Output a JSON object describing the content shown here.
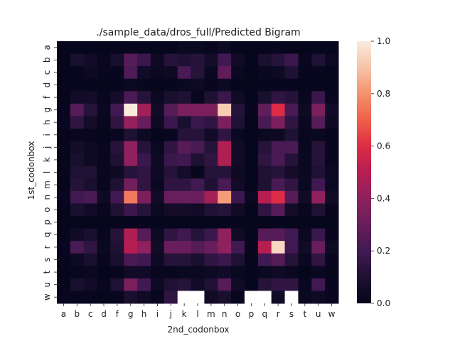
{
  "chart_data": {
    "type": "heatmap",
    "title": "./sample_data/dros_full/Predicted Bigram",
    "xlabel": "2nd_codonbox",
    "ylabel": "1st_codonbox",
    "x_categories": [
      "a",
      "b",
      "c",
      "d",
      "f",
      "g",
      "h",
      "i",
      "j",
      "k",
      "l",
      "m",
      "n",
      "o",
      "p",
      "q",
      "r",
      "s",
      "t",
      "u",
      "w"
    ],
    "y_categories": [
      "a",
      "b",
      "c",
      "d",
      "f",
      "g",
      "h",
      "i",
      "j",
      "k",
      "l",
      "m",
      "n",
      "o",
      "p",
      "q",
      "r",
      "s",
      "t",
      "u",
      "w"
    ],
    "colorbar": {
      "min": 0.0,
      "max": 1.0,
      "ticks": [
        "0.0",
        "0.2",
        "0.4",
        "0.6",
        "0.8",
        "1.0"
      ],
      "colormap": "rocket"
    },
    "missing_color": "#ffffff",
    "values": [
      [
        0.01,
        0.01,
        0.01,
        0.01,
        0.01,
        0.02,
        0.02,
        0.01,
        0.01,
        0.03,
        0.03,
        0.02,
        0.04,
        0.01,
        0.01,
        0.01,
        0.02,
        0.01,
        0.01,
        0.01,
        0.01
      ],
      [
        0.01,
        0.08,
        0.05,
        0.02,
        0.07,
        0.25,
        0.18,
        0.04,
        0.12,
        0.1,
        0.12,
        0.06,
        0.2,
        0.05,
        0.01,
        0.08,
        0.12,
        0.18,
        0.02,
        0.1,
        0.03
      ],
      [
        0.01,
        0.02,
        0.04,
        0.02,
        0.02,
        0.23,
        0.05,
        0.03,
        0.04,
        0.22,
        0.12,
        0.03,
        0.28,
        0.03,
        0.01,
        0.03,
        0.04,
        0.1,
        0.02,
        0.02,
        0.01
      ],
      [
        0.01,
        0.02,
        0.02,
        0.01,
        0.02,
        0.03,
        0.02,
        0.01,
        0.02,
        0.03,
        0.04,
        0.02,
        0.04,
        0.01,
        0.01,
        0.02,
        0.02,
        0.02,
        0.01,
        0.02,
        0.01
      ],
      [
        0.01,
        0.05,
        0.06,
        0.02,
        0.06,
        0.22,
        0.12,
        0.03,
        0.08,
        0.1,
        0.02,
        0.1,
        0.18,
        0.05,
        0.01,
        0.08,
        0.15,
        0.12,
        0.02,
        0.18,
        0.02
      ],
      [
        0.02,
        0.25,
        0.12,
        0.03,
        0.2,
        1.0,
        0.45,
        0.05,
        0.25,
        0.35,
        0.35,
        0.35,
        0.92,
        0.12,
        0.02,
        0.28,
        0.6,
        0.22,
        0.04,
        0.35,
        0.05
      ],
      [
        0.02,
        0.15,
        0.06,
        0.02,
        0.15,
        0.42,
        0.3,
        0.04,
        0.18,
        0.08,
        0.18,
        0.15,
        0.35,
        0.1,
        0.01,
        0.22,
        0.35,
        0.15,
        0.03,
        0.25,
        0.04
      ],
      [
        0.01,
        0.02,
        0.02,
        0.01,
        0.02,
        0.1,
        0.04,
        0.01,
        0.02,
        0.12,
        0.12,
        0.05,
        0.15,
        0.03,
        0.01,
        0.03,
        0.04,
        0.1,
        0.02,
        0.03,
        0.01
      ],
      [
        0.01,
        0.06,
        0.04,
        0.02,
        0.12,
        0.4,
        0.12,
        0.03,
        0.15,
        0.25,
        0.22,
        0.12,
        0.48,
        0.05,
        0.01,
        0.12,
        0.22,
        0.22,
        0.02,
        0.12,
        0.02
      ],
      [
        0.01,
        0.08,
        0.04,
        0.02,
        0.1,
        0.4,
        0.18,
        0.04,
        0.18,
        0.2,
        0.1,
        0.15,
        0.48,
        0.05,
        0.01,
        0.15,
        0.22,
        0.12,
        0.03,
        0.12,
        0.02
      ],
      [
        0.01,
        0.1,
        0.1,
        0.02,
        0.04,
        0.12,
        0.15,
        0.04,
        0.12,
        0.06,
        0.02,
        0.12,
        0.12,
        0.04,
        0.01,
        0.1,
        0.12,
        0.06,
        0.03,
        0.1,
        0.03
      ],
      [
        0.01,
        0.12,
        0.08,
        0.02,
        0.1,
        0.32,
        0.15,
        0.03,
        0.15,
        0.15,
        0.2,
        0.1,
        0.22,
        0.05,
        0.01,
        0.1,
        0.22,
        0.15,
        0.03,
        0.2,
        0.03
      ],
      [
        0.02,
        0.2,
        0.22,
        0.04,
        0.2,
        0.75,
        0.35,
        0.05,
        0.3,
        0.3,
        0.3,
        0.45,
        0.82,
        0.18,
        0.03,
        0.5,
        0.6,
        0.25,
        0.05,
        0.4,
        0.05
      ],
      [
        0.01,
        0.08,
        0.05,
        0.02,
        0.1,
        0.18,
        0.12,
        0.03,
        0.06,
        0.06,
        0.05,
        0.1,
        0.12,
        0.05,
        0.01,
        0.15,
        0.25,
        0.06,
        0.02,
        0.1,
        0.02
      ],
      [
        0.01,
        0.01,
        0.01,
        0.01,
        0.01,
        0.02,
        0.02,
        0.01,
        0.01,
        0.01,
        0.01,
        0.01,
        0.02,
        0.01,
        0.01,
        0.01,
        0.02,
        0.01,
        0.01,
        0.01,
        0.01
      ],
      [
        0.01,
        0.05,
        0.08,
        0.02,
        0.12,
        0.48,
        0.25,
        0.04,
        0.15,
        0.2,
        0.12,
        0.18,
        0.4,
        0.05,
        0.01,
        0.25,
        0.25,
        0.2,
        0.03,
        0.18,
        0.02
      ],
      [
        0.02,
        0.22,
        0.15,
        0.03,
        0.1,
        0.5,
        0.4,
        0.05,
        0.3,
        0.3,
        0.25,
        0.3,
        0.4,
        0.2,
        0.02,
        0.5,
        0.95,
        0.2,
        0.05,
        0.3,
        0.04
      ],
      [
        0.01,
        0.04,
        0.08,
        0.02,
        0.08,
        0.22,
        0.2,
        0.04,
        0.12,
        0.12,
        0.08,
        0.15,
        0.18,
        0.1,
        0.01,
        0.2,
        0.25,
        0.12,
        0.03,
        0.15,
        0.02
      ],
      [
        0.01,
        0.02,
        0.03,
        0.01,
        0.02,
        0.05,
        0.05,
        0.02,
        0.02,
        0.03,
        0.03,
        0.04,
        0.05,
        0.03,
        0.01,
        0.03,
        0.05,
        0.03,
        0.01,
        0.03,
        0.01
      ],
      [
        0.01,
        0.08,
        0.05,
        0.02,
        0.1,
        0.35,
        0.2,
        0.04,
        0.1,
        0.12,
        0.05,
        0.1,
        0.25,
        0.05,
        0.01,
        0.12,
        0.15,
        0.15,
        0.02,
        0.2,
        0.02
      ],
      [
        0.02,
        0.02,
        0.02,
        0.01,
        0.02,
        0.08,
        0.05,
        0.02,
        0.15,
        null,
        null,
        0.05,
        0.08,
        0.02,
        null,
        null,
        0.05,
        null,
        0.03,
        0.04,
        0.02
      ]
    ]
  }
}
